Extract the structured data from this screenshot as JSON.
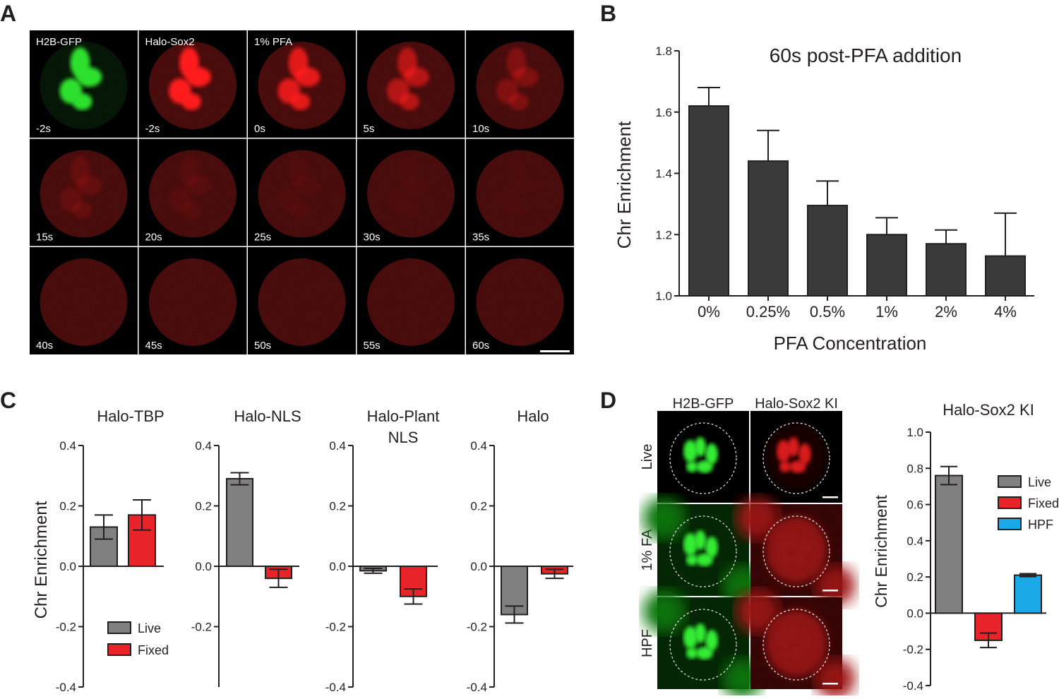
{
  "panels": {
    "A": {
      "letter": "A",
      "tiles": [
        {
          "label": "H2B-GFP",
          "time": "-2s",
          "channel": "green",
          "intensity": 1.0
        },
        {
          "label": "Halo-Sox2",
          "time": "-2s",
          "channel": "red",
          "intensity": 1.0
        },
        {
          "label": "1% PFA",
          "time": "0s",
          "channel": "red",
          "intensity": 0.85
        },
        {
          "label": "",
          "time": "5s",
          "channel": "red",
          "intensity": 0.6
        },
        {
          "label": "",
          "time": "10s",
          "channel": "red",
          "intensity": 0.3
        },
        {
          "label": "",
          "time": "15s",
          "channel": "red",
          "intensity": 0.15
        },
        {
          "label": "",
          "time": "20s",
          "channel": "red",
          "intensity": 0.08
        },
        {
          "label": "",
          "time": "25s",
          "channel": "red",
          "intensity": 0.05
        },
        {
          "label": "",
          "time": "30s",
          "channel": "red",
          "intensity": 0.03
        },
        {
          "label": "",
          "time": "35s",
          "channel": "red",
          "intensity": 0.02
        },
        {
          "label": "",
          "time": "40s",
          "channel": "red",
          "intensity": 0.0
        },
        {
          "label": "",
          "time": "45s",
          "channel": "red",
          "intensity": 0.0
        },
        {
          "label": "",
          "time": "50s",
          "channel": "red",
          "intensity": 0.0
        },
        {
          "label": "",
          "time": "55s",
          "channel": "red",
          "intensity": 0.0
        },
        {
          "label": "",
          "time": "60s",
          "channel": "red",
          "intensity": 0.0
        }
      ]
    },
    "B": {
      "letter": "B"
    },
    "C": {
      "letter": "C"
    },
    "D": {
      "letter": "D",
      "col_labels": [
        "H2B-GFP",
        "Halo-Sox2 KI"
      ],
      "row_labels": [
        "Live",
        "1% FA",
        "HPF"
      ]
    }
  },
  "chart_data": [
    {
      "id": "B",
      "type": "bar",
      "title": "60s post-PFA addition",
      "xlabel": "PFA Concentration",
      "ylabel": "Chr Enrichment",
      "categories": [
        "0%",
        "0.25%",
        "0.5%",
        "1%",
        "2%",
        "4%"
      ],
      "values": [
        1.62,
        1.44,
        1.295,
        1.2,
        1.17,
        1.13
      ],
      "errors": [
        0.06,
        0.1,
        0.08,
        0.055,
        0.045,
        0.14
      ],
      "ylim": [
        1.0,
        1.8
      ],
      "yticks": [
        "1.0",
        "1.2",
        "1.4",
        "1.6",
        "1.8"
      ],
      "bar_color": "#3a3a3a"
    },
    {
      "id": "C1",
      "type": "bar",
      "title": "Halo-TBP",
      "ylabel": "Chr Enrichment",
      "categories": [
        "Live",
        "Fixed"
      ],
      "values": [
        0.13,
        0.17
      ],
      "errors": [
        0.04,
        0.05
      ],
      "ylim": [
        -0.4,
        0.4
      ],
      "yticks": [
        "-0.4",
        "-0.2",
        "0.0",
        "0.2",
        "0.4"
      ],
      "colors": [
        "#808080",
        "#e8232a"
      ],
      "legend": [
        {
          "label": "Live",
          "color": "#808080"
        },
        {
          "label": "Fixed",
          "color": "#e8232a"
        }
      ]
    },
    {
      "id": "C2",
      "type": "bar",
      "title": "Halo-NLS",
      "categories": [
        "Live",
        "Fixed"
      ],
      "values": [
        0.29,
        -0.04
      ],
      "errors": [
        0.02,
        0.03
      ],
      "ylim": [
        -0.4,
        0.4
      ],
      "yticks": [
        "-0.2",
        "0.0",
        "0.2",
        "0.4"
      ],
      "colors": [
        "#808080",
        "#e8232a"
      ]
    },
    {
      "id": "C3",
      "type": "bar",
      "title": "Halo-Plant NLS",
      "title_lines": [
        "Halo-Plant",
        "NLS"
      ],
      "categories": [
        "Live",
        "Fixed"
      ],
      "values": [
        -0.015,
        -0.1
      ],
      "errors": [
        0.008,
        0.025
      ],
      "ylim": [
        -0.4,
        0.4
      ],
      "yticks": [
        "-0.4",
        "-0.2",
        "0.0",
        "0.2",
        "0.4"
      ],
      "colors": [
        "#808080",
        "#e8232a"
      ]
    },
    {
      "id": "C4",
      "type": "bar",
      "title": "Halo",
      "categories": [
        "Live",
        "Fixed"
      ],
      "values": [
        -0.16,
        -0.025
      ],
      "errors": [
        0.028,
        0.015
      ],
      "ylim": [
        -0.4,
        0.4
      ],
      "yticks": [
        "-0.4",
        "-0.2",
        "0.0",
        "0.2",
        "0.4"
      ],
      "colors": [
        "#808080",
        "#e8232a"
      ]
    },
    {
      "id": "D",
      "type": "bar",
      "title": "Halo-Sox2 KI",
      "ylabel": "Chr Enrichment",
      "categories": [
        "Live",
        "Fixed",
        "HPF"
      ],
      "values": [
        0.76,
        -0.15,
        0.21
      ],
      "errors": [
        0.05,
        0.04,
        0.008
      ],
      "ylim": [
        -0.4,
        1.0
      ],
      "yticks": [
        "-0.4",
        "-0.2",
        "0.0",
        "0.2",
        "0.4",
        "0.6",
        "0.8",
        "1.0"
      ],
      "colors": [
        "#808080",
        "#e8232a",
        "#1aa9e6"
      ],
      "legend": [
        {
          "label": "Live",
          "color": "#808080"
        },
        {
          "label": "Fixed",
          "color": "#e8232a"
        },
        {
          "label": "HPF",
          "color": "#1aa9e6"
        }
      ]
    }
  ]
}
